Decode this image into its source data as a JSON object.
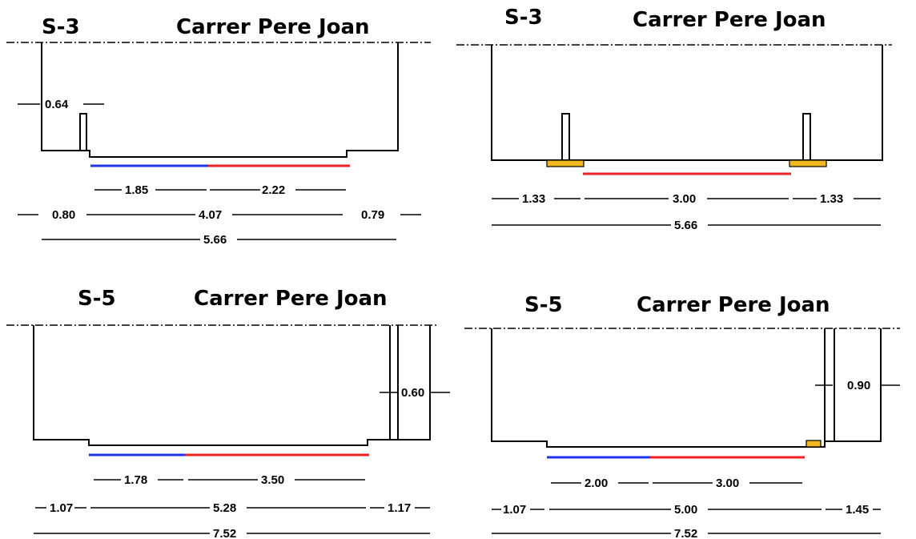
{
  "sections": [
    {
      "id": "S-3",
      "street": "Carrer Pere Joan",
      "bollard_offset": "0.64",
      "lanes": [
        "1.85",
        "2.22"
      ],
      "row2": [
        "0.80",
        "4.07",
        "0.79"
      ],
      "total": "5.66",
      "colors": {
        "blue": "#2233ee",
        "red": "#ee2222"
      }
    },
    {
      "id": "S-3",
      "street": "Carrer Pere Joan",
      "row1": [
        "1.33",
        "3.00",
        "1.33"
      ],
      "total": "5.66",
      "colors": {
        "red": "#ee2222",
        "curb": "#f0b81e"
      }
    },
    {
      "id": "S-5",
      "street": "Carrer Pere Joan",
      "sidewalk": "0.60",
      "lanes": [
        "1.78",
        "3.50"
      ],
      "row2": [
        "1.07",
        "5.28",
        "1.17"
      ],
      "total": "7.52",
      "colors": {
        "blue": "#2233ee",
        "red": "#ee2222"
      }
    },
    {
      "id": "S-5",
      "street": "Carrer Pere Joan",
      "sidewalk": "0.90",
      "lanes": [
        "2.00",
        "3.00"
      ],
      "row2": [
        "1.07",
        "5.00",
        "1.45"
      ],
      "total": "7.52",
      "colors": {
        "blue": "#2233ee",
        "red": "#ee2222",
        "curb": "#f0b81e"
      }
    }
  ]
}
